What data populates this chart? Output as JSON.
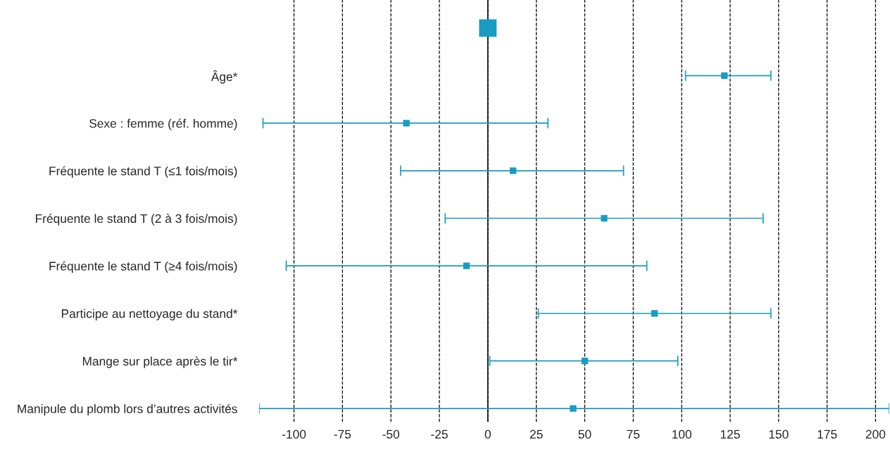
{
  "chart_data": {
    "type": "scatter",
    "orientation": "horizontal",
    "categories": [
      null,
      "Âge*",
      "Sexe : femme (réf. homme)",
      "Fréquente le stand T (≤1 fois/mois)",
      "Fréquente le stand T (2 à 3 fois/mois)",
      "Fréquente le stand T (≥4 fois/mois)",
      "Participe au nettoyage du stand*",
      "Mange sur place après le tir*",
      "Manipule du plomb lors d’autres activités"
    ],
    "series": [
      {
        "color": "#1a9bc4",
        "values": [
          0,
          null,
          null,
          null,
          null,
          null,
          null,
          null,
          null
        ]
      },
      {
        "color": "#1a9bc4",
        "values": [
          null,
          122,
          -42,
          13,
          60,
          -11,
          86,
          50,
          44
        ],
        "errors": [
          null,
          [
            102,
            146
          ],
          [
            -116,
            31
          ],
          [
            -45,
            70
          ],
          [
            -22,
            142
          ],
          [
            -104,
            82
          ],
          [
            26,
            146
          ],
          [
            1,
            98
          ],
          [
            -118,
            207
          ]
        ]
      }
    ],
    "xlim": [
      -118,
      207
    ],
    "xticks": [
      -100,
      -75,
      -50,
      -25,
      0,
      25,
      50,
      75,
      100,
      125,
      150,
      175,
      200
    ],
    "grid": "x",
    "marker": "square",
    "ref_lines": [
      {
        "axis": "x",
        "value": 0,
        "color": "#000000",
        "line_style": "solid"
      }
    ]
  }
}
